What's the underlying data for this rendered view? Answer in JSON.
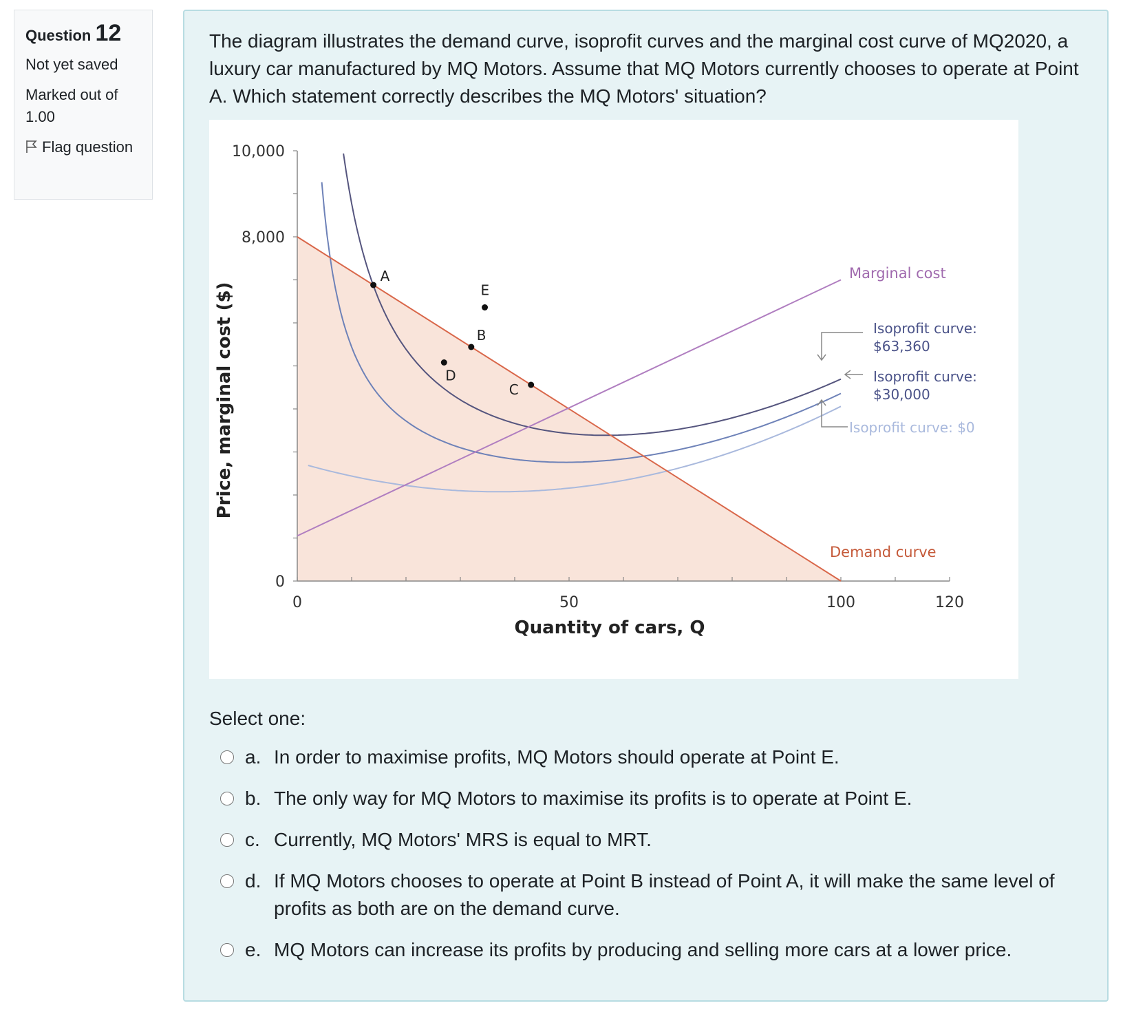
{
  "question_info": {
    "question_word": "Question",
    "question_number": "12",
    "state": "Not yet saved",
    "grade": "Marked out of 1.00",
    "flag_label": "Flag question"
  },
  "question_text": "The diagram illustrates the demand curve, isoprofit curves and the marginal cost curve of MQ2020, a luxury car manufactured by MQ Motors. Assume that MQ Motors currently chooses to operate at Point A. Which statement correctly describes the MQ Motors' situation?",
  "chart_data": {
    "type": "line",
    "xlabel": "Quantity of cars, Q",
    "ylabel": "Price, marginal cost ($)",
    "xlim": [
      0,
      120
    ],
    "ylim": [
      0,
      10000
    ],
    "x_tick_labels": [
      "0",
      "50",
      "100",
      "120"
    ],
    "y_tick_labels": [
      "0",
      "8,000",
      "10,000"
    ],
    "series": [
      {
        "name": "Demand curve",
        "color": "#d9674a",
        "x": [
          0,
          100
        ],
        "y": [
          8000,
          0
        ]
      },
      {
        "name": "Marginal cost",
        "color": "#b07ec0",
        "x": [
          0,
          100
        ],
        "y": [
          1050,
          7000
        ]
      },
      {
        "name": "Isoprofit curve: $63,360",
        "label_lines": [
          "Isoprofit curve:",
          "$63,360"
        ],
        "color": "#55557e",
        "profit": 63360
      },
      {
        "name": "Isoprofit curve: $30,000",
        "label_lines": [
          "Isoprofit curve:",
          "$30,000"
        ],
        "color": "#6e82b8",
        "profit": 30000
      },
      {
        "name": "Isoprofit curve: $0",
        "label_lines": [
          "Isoprofit curve: $0"
        ],
        "color": "#a9b9dd",
        "profit": 0
      }
    ],
    "points": [
      {
        "label": "A",
        "x": 14,
        "y": 6880
      },
      {
        "label": "B",
        "x": 32,
        "y": 5440
      },
      {
        "label": "C",
        "x": 43,
        "y": 4560
      },
      {
        "label": "D",
        "x": 27,
        "y": 5080
      },
      {
        "label": "E",
        "x": 34.5,
        "y": 6360
      }
    ]
  },
  "prompt": "Select one:",
  "options": [
    {
      "letter": "a.",
      "text": "In order to maximise profits, MQ Motors should operate at Point E."
    },
    {
      "letter": "b.",
      "text": "The only way for MQ Motors to maximise its profits is to operate at Point E."
    },
    {
      "letter": "c.",
      "text": "Currently, MQ Motors' MRS is equal to MRT."
    },
    {
      "letter": "d.",
      "text": "If MQ Motors chooses to operate at Point B instead of Point A, it will make the same level of profits as both are on the demand curve."
    },
    {
      "letter": "e.",
      "text": "MQ Motors can increase its profits by producing and selling more cars at a lower price."
    }
  ]
}
